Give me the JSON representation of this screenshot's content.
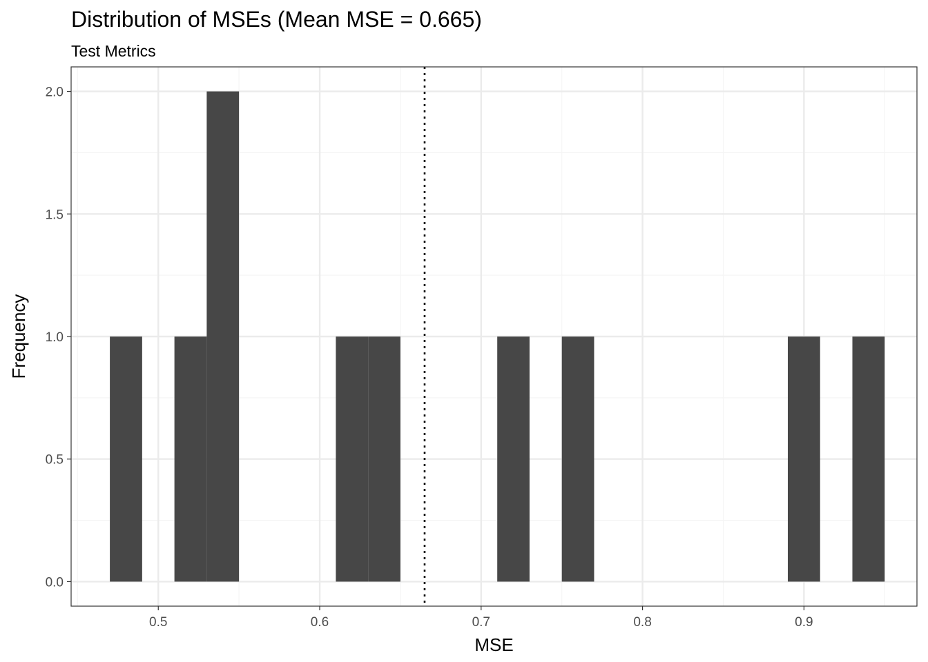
{
  "chart_data": {
    "type": "bar",
    "title": "Distribution of MSEs (Mean MSE = 0.665)",
    "subtitle": "Test Metrics",
    "xlabel": "MSE",
    "ylabel": "Frequency",
    "xlim": [
      0.446,
      0.97
    ],
    "ylim": [
      -0.1,
      2.1
    ],
    "x_ticks": [
      0.5,
      0.6,
      0.7,
      0.8,
      0.9
    ],
    "x_tick_labels": [
      "0.5",
      "0.6",
      "0.7",
      "0.8",
      "0.9"
    ],
    "y_ticks": [
      0.0,
      0.5,
      1.0,
      1.5,
      2.0
    ],
    "y_tick_labels": [
      "0.0",
      "0.5",
      "1.0",
      "1.5",
      "2.0"
    ],
    "bin_width": 0.02,
    "bins": [
      {
        "x_start": 0.47,
        "x_end": 0.49,
        "count": 1
      },
      {
        "x_start": 0.51,
        "x_end": 0.53,
        "count": 1
      },
      {
        "x_start": 0.53,
        "x_end": 0.55,
        "count": 2
      },
      {
        "x_start": 0.61,
        "x_end": 0.63,
        "count": 1
      },
      {
        "x_start": 0.63,
        "x_end": 0.65,
        "count": 1
      },
      {
        "x_start": 0.71,
        "x_end": 0.73,
        "count": 1
      },
      {
        "x_start": 0.75,
        "x_end": 0.77,
        "count": 1
      },
      {
        "x_start": 0.89,
        "x_end": 0.91,
        "count": 1
      },
      {
        "x_start": 0.93,
        "x_end": 0.95,
        "count": 1
      }
    ],
    "mean_line": 0.665,
    "grid": true,
    "colors": {
      "bar": "#474747",
      "grid_major": "#ebebeb",
      "grid_minor": "#f5f5f5",
      "panel_border": "#333333",
      "mean_line": "#000000"
    }
  }
}
